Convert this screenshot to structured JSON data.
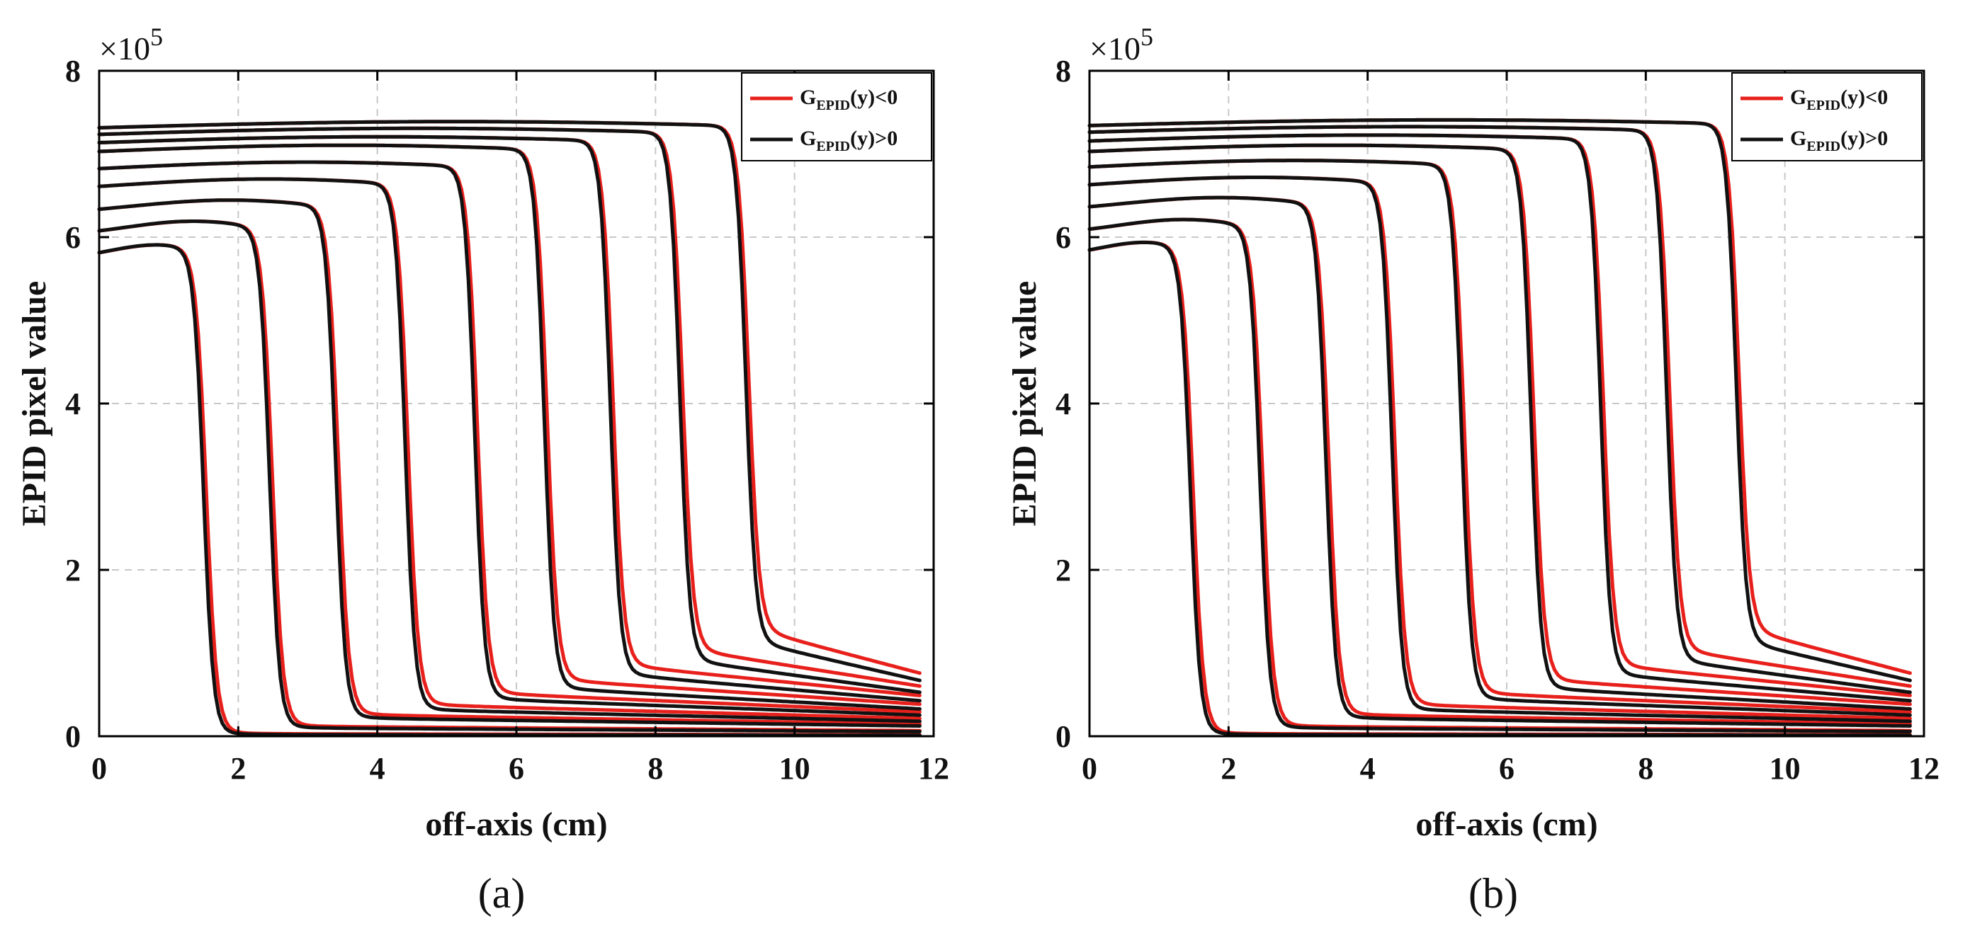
{
  "chart_data": [
    {
      "type": "line",
      "panel_label": "(a)",
      "xlabel": "off-axis (cm)",
      "ylabel": "EPID pixel value",
      "y_multiplier": "×10",
      "y_exponent": "5",
      "xlim": [
        0,
        12
      ],
      "ylim": [
        0,
        8
      ],
      "xticks": [
        "0",
        "2",
        "4",
        "6",
        "8",
        "10",
        "12"
      ],
      "yticks": [
        "0",
        "2",
        "4",
        "6",
        "8"
      ],
      "grid": true,
      "legend_position": "top-right",
      "legend": [
        {
          "name": "G",
          "sub": "EPID",
          "suffix": "(y)<0",
          "color": "#e8201c"
        },
        {
          "name": "G",
          "sub": "EPID",
          "suffix": "(y)>0",
          "color": "#111111"
        }
      ],
      "x_max": 11.8,
      "series_params": [
        {
          "plateau": 5.82,
          "edge": 1.5,
          "tail": 0.02,
          "tail_red": 0.03,
          "dome": 0.3
        },
        {
          "plateau": 6.1,
          "edge": 2.45,
          "tail": 0.1,
          "tail_red": 0.12,
          "dome": 0.35
        },
        {
          "plateau": 6.35,
          "edge": 3.4,
          "tail": 0.22,
          "tail_red": 0.26,
          "dome": 0.45
        },
        {
          "plateau": 6.6,
          "edge": 4.4,
          "tail": 0.32,
          "tail_red": 0.38,
          "dome": 0.6
        },
        {
          "plateau": 6.8,
          "edge": 5.4,
          "tail": 0.45,
          "tail_red": 0.52,
          "dome": 0.7
        },
        {
          "plateau": 7.0,
          "edge": 6.4,
          "tail": 0.58,
          "tail_red": 0.68,
          "dome": 0.75
        },
        {
          "plateau": 7.1,
          "edge": 7.35,
          "tail": 0.75,
          "tail_red": 0.86,
          "dome": 0.8
        },
        {
          "plateau": 7.2,
          "edge": 8.35,
          "tail": 0.92,
          "tail_red": 1.05,
          "dome": 0.8
        },
        {
          "plateau": 7.28,
          "edge": 9.3,
          "tail": 1.15,
          "tail_red": 1.3,
          "dome": 0.8
        }
      ]
    },
    {
      "type": "line",
      "panel_label": "(b)",
      "xlabel": "off-axis (cm)",
      "ylabel": "EPID pixel value",
      "y_multiplier": "×10",
      "y_exponent": "5",
      "xlim": [
        0,
        12
      ],
      "ylim": [
        0,
        8
      ],
      "xticks": [
        "0",
        "2",
        "4",
        "6",
        "8",
        "10",
        "12"
      ],
      "yticks": [
        "0",
        "2",
        "4",
        "6",
        "8"
      ],
      "grid": true,
      "legend_position": "top-right",
      "legend": [
        {
          "name": "G",
          "sub": "EPID",
          "suffix": "(y)<0",
          "color": "#e8201c"
        },
        {
          "name": "G",
          "sub": "EPID",
          "suffix": "(y)>0",
          "color": "#111111"
        }
      ],
      "x_max": 11.8,
      "series_params": [
        {
          "plateau": 5.85,
          "edge": 1.45,
          "tail": 0.02,
          "tail_red": 0.03,
          "dome": 0.3
        },
        {
          "plateau": 6.12,
          "edge": 2.45,
          "tail": 0.1,
          "tail_red": 0.12,
          "dome": 0.35
        },
        {
          "plateau": 6.38,
          "edge": 3.4,
          "tail": 0.22,
          "tail_red": 0.26,
          "dome": 0.45
        },
        {
          "plateau": 6.62,
          "edge": 4.35,
          "tail": 0.32,
          "tail_red": 0.38,
          "dome": 0.6
        },
        {
          "plateau": 6.82,
          "edge": 5.35,
          "tail": 0.45,
          "tail_red": 0.52,
          "dome": 0.7
        },
        {
          "plateau": 7.0,
          "edge": 6.35,
          "tail": 0.58,
          "tail_red": 0.68,
          "dome": 0.75
        },
        {
          "plateau": 7.12,
          "edge": 7.35,
          "tail": 0.75,
          "tail_red": 0.86,
          "dome": 0.8
        },
        {
          "plateau": 7.22,
          "edge": 8.3,
          "tail": 0.92,
          "tail_red": 1.05,
          "dome": 0.85
        },
        {
          "plateau": 7.3,
          "edge": 9.3,
          "tail": 1.15,
          "tail_red": 1.3,
          "dome": 0.85
        }
      ]
    }
  ]
}
